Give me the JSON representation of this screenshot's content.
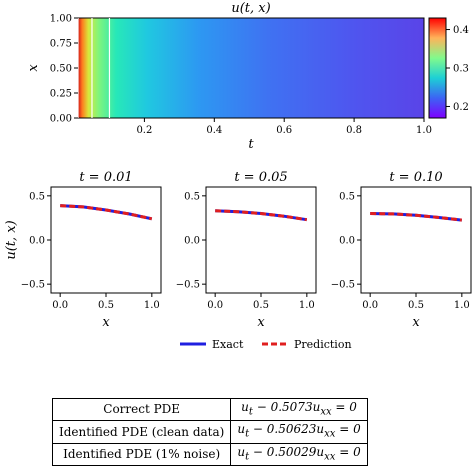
{
  "chart_data": [
    {
      "type": "heatmap",
      "title": "u(t, x)",
      "xlabel": "t",
      "ylabel": "x",
      "xlim": [
        0.01,
        1.0
      ],
      "ylim": [
        0.0,
        1.0
      ],
      "x_ticks": [
        "0.2",
        "0.4",
        "0.6",
        "0.8",
        "1.0"
      ],
      "y_ticks": [
        "0.00",
        "0.25",
        "0.50",
        "0.75",
        "1.00"
      ],
      "colorbar": {
        "range": [
          0.17,
          0.43
        ],
        "ticks": [
          "0.2",
          "0.3",
          "0.4"
        ],
        "colormap": "rainbow"
      },
      "marked_times": [
        0.01,
        0.05,
        0.1
      ],
      "marker_color": "#ffffff"
    },
    {
      "type": "line",
      "title": "t = 0.01",
      "xlabel": "x",
      "ylabel": "u(t, x)",
      "xlim": [
        -0.1,
        1.1
      ],
      "ylim": [
        -0.6,
        0.6
      ],
      "x_ticks": [
        "0.0",
        "0.5",
        "1.0"
      ],
      "y_ticks": [
        "−0.5",
        "0.0",
        "0.5"
      ],
      "x": [
        0,
        0.25,
        0.5,
        0.75,
        1.0
      ],
      "series": [
        {
          "name": "Exact",
          "values": [
            0.39,
            0.375,
            0.34,
            0.295,
            0.24
          ],
          "color": "#1f1fe0",
          "style": "solid"
        },
        {
          "name": "Prediction",
          "values": [
            0.39,
            0.375,
            0.34,
            0.295,
            0.24
          ],
          "color": "#e01f1f",
          "style": "dashed"
        }
      ]
    },
    {
      "type": "line",
      "title": "t = 0.05",
      "xlabel": "x",
      "ylabel": "",
      "xlim": [
        -0.1,
        1.1
      ],
      "ylim": [
        -0.6,
        0.6
      ],
      "x_ticks": [
        "0.0",
        "0.5",
        "1.0"
      ],
      "y_ticks": [
        "−0.5",
        "0.0",
        "0.5"
      ],
      "x": [
        0,
        0.25,
        0.5,
        0.75,
        1.0
      ],
      "series": [
        {
          "name": "Exact",
          "values": [
            0.33,
            0.32,
            0.3,
            0.27,
            0.23
          ],
          "color": "#1f1fe0",
          "style": "solid"
        },
        {
          "name": "Prediction",
          "values": [
            0.33,
            0.32,
            0.3,
            0.27,
            0.23
          ],
          "color": "#e01f1f",
          "style": "dashed"
        }
      ]
    },
    {
      "type": "line",
      "title": "t = 0.10",
      "xlabel": "x",
      "ylabel": "",
      "xlim": [
        -0.1,
        1.1
      ],
      "ylim": [
        -0.6,
        0.6
      ],
      "x_ticks": [
        "0.0",
        "0.5",
        "1.0"
      ],
      "y_ticks": [
        "−0.5",
        "0.0",
        "0.5"
      ],
      "x": [
        0,
        0.25,
        0.5,
        0.75,
        1.0
      ],
      "series": [
        {
          "name": "Exact",
          "values": [
            0.3,
            0.295,
            0.28,
            0.255,
            0.225
          ],
          "color": "#1f1fe0",
          "style": "solid"
        },
        {
          "name": "Prediction",
          "values": [
            0.3,
            0.295,
            0.28,
            0.255,
            0.225
          ],
          "color": "#e01f1f",
          "style": "dashed"
        }
      ]
    }
  ],
  "legend": {
    "exact_label": "Exact",
    "prediction_label": "Prediction",
    "placement": "bottom-center"
  },
  "pde_table": {
    "rows": [
      {
        "label": "Correct PDE",
        "equation": "u_t − 0.5073u_xx = 0"
      },
      {
        "label": "Identified PDE (clean data)",
        "equation": "u_t − 0.50623u_xx = 0"
      },
      {
        "label": "Identified PDE (1% noise)",
        "equation": "u_t − 0.50029u_xx = 0"
      }
    ]
  }
}
